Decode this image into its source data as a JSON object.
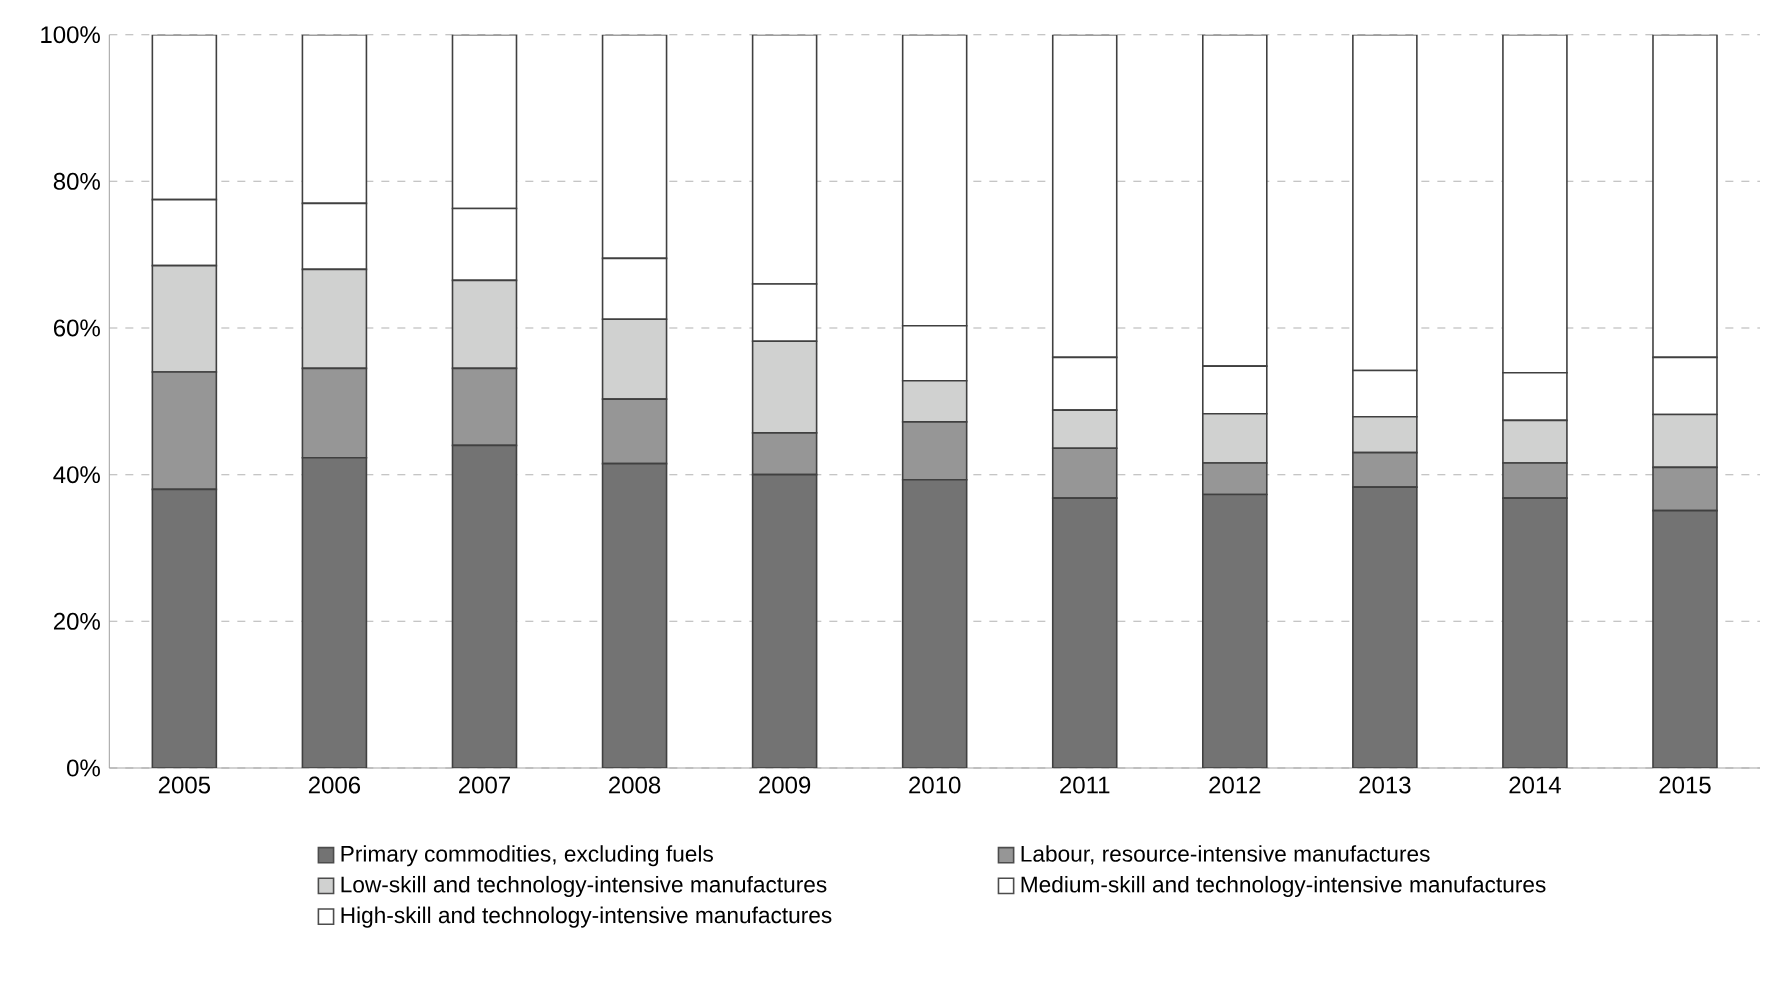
{
  "chart_data": {
    "type": "bar",
    "stacked": true,
    "categories": [
      "2005",
      "2006",
      "2007",
      "2008",
      "2009",
      "2010",
      "2011",
      "2012",
      "2013",
      "2014",
      "2015"
    ],
    "series": [
      {
        "name": "Primary commodities, excluding fuels",
        "color": "#737373",
        "values": [
          38,
          42.3,
          44,
          41.5,
          40,
          39.3,
          36.8,
          37.3,
          38.3,
          36.8,
          35.1
        ]
      },
      {
        "name": "Labour, resource-intensive manufactures",
        "color": "#969696",
        "values": [
          16,
          12.2,
          10.5,
          8.8,
          5.7,
          7.9,
          6.8,
          4.3,
          4.7,
          4.8,
          5.9
        ]
      },
      {
        "name": "Low-skill and technology-intensive manufactures",
        "color": "#d0d1d0",
        "values": [
          14.5,
          13.5,
          12,
          10.9,
          12.5,
          5.6,
          5.2,
          6.7,
          4.9,
          5.8,
          7.2
        ]
      },
      {
        "name": "Medium-skill and technology-intensive manufactures",
        "color": "#ffffff",
        "values": [
          9,
          9,
          9.8,
          8.3,
          7.8,
          7.5,
          7.2,
          6.5,
          6.3,
          6.5,
          7.8
        ]
      },
      {
        "name": "High-skill and technology-intensive manufactures",
        "color": "#ffffff",
        "values": [
          22.5,
          23,
          23.7,
          30.5,
          34,
          39.7,
          44,
          45.2,
          45.8,
          46.1,
          44
        ]
      }
    ],
    "ylim": [
      0,
      100
    ],
    "yticks": [
      {
        "value": 0,
        "label": "0%"
      },
      {
        "value": 20,
        "label": "20%"
      },
      {
        "value": 40,
        "label": "40%"
      },
      {
        "value": 60,
        "label": "60%"
      },
      {
        "value": 80,
        "label": "80%"
      },
      {
        "value": 100,
        "label": "100%"
      }
    ],
    "grid": "y",
    "legend": "bottom"
  }
}
